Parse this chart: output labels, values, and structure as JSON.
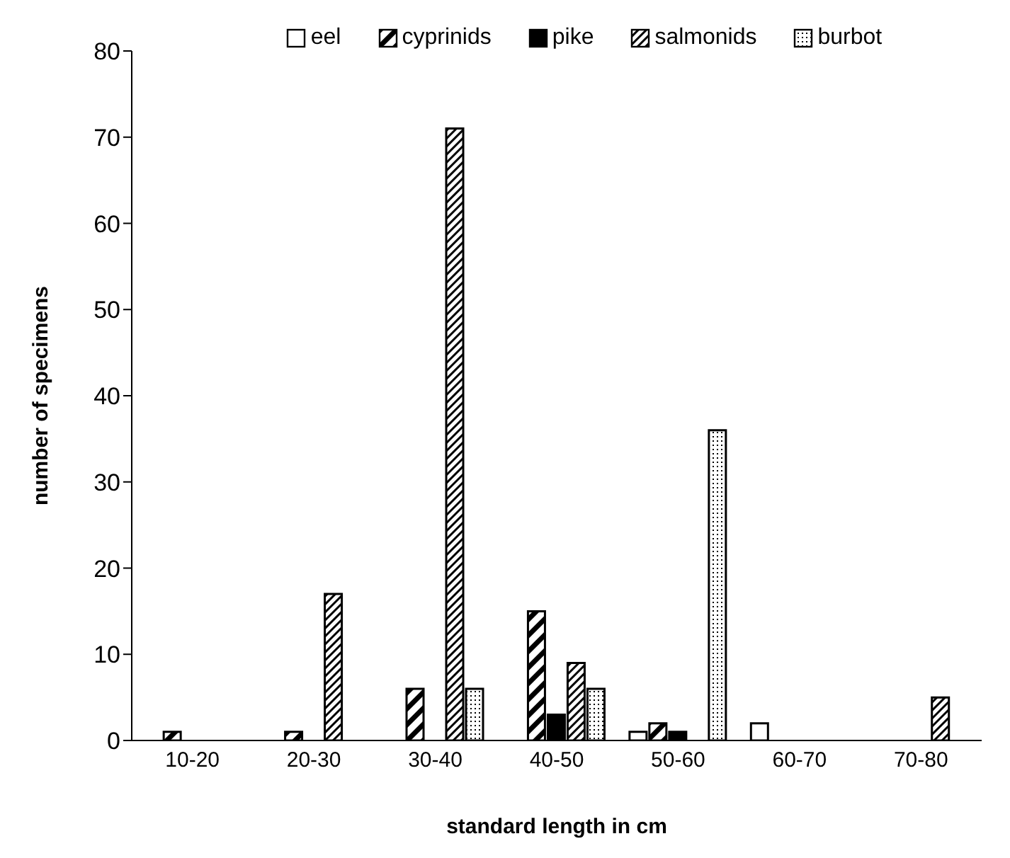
{
  "chart_data": {
    "type": "bar",
    "xlabel": "standard length in cm",
    "ylabel": "number of specimens",
    "categories": [
      "10-20",
      "20-30",
      "30-40",
      "40-50",
      "50-60",
      "60-70",
      "70-80"
    ],
    "series": [
      {
        "name": "eel",
        "color": "#ffffff",
        "values": [
          0,
          0,
          0,
          0,
          1,
          2,
          0
        ]
      },
      {
        "name": "cyprinids",
        "color": "#000000",
        "values": [
          1,
          1,
          6,
          15,
          2,
          0,
          0
        ]
      },
      {
        "name": "pike",
        "color": "#000000",
        "values": [
          0,
          0,
          0,
          3,
          1,
          0,
          0
        ]
      },
      {
        "name": "salmonids",
        "color": "#000000",
        "values": [
          0,
          17,
          71,
          9,
          0,
          0,
          5
        ]
      },
      {
        "name": "burbot",
        "color": "#000000",
        "values": [
          0,
          0,
          6,
          6,
          36,
          0,
          0
        ]
      }
    ],
    "ylim": [
      0,
      80
    ],
    "yticks": [
      0,
      10,
      20,
      30,
      40,
      50,
      60,
      70,
      80
    ],
    "grid": false,
    "legend": "top"
  }
}
